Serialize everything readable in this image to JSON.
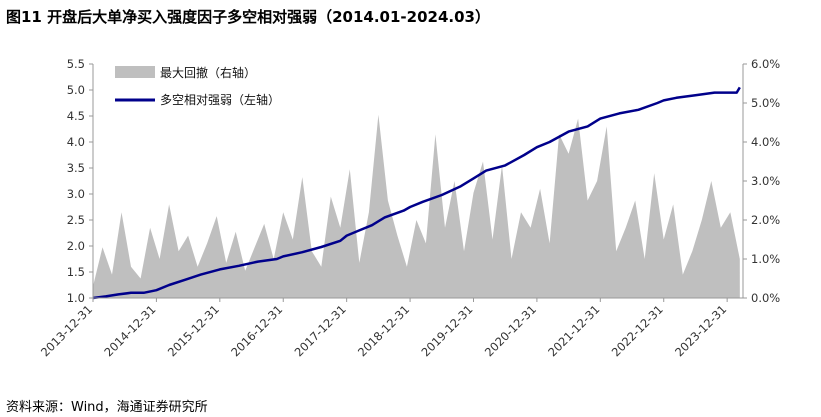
{
  "title": "图11 开盘后大单净买入强度因子多空相对强弱（2014.01-2024.03）",
  "source": "资料来源：Wind，海通证券研究所",
  "chart_data": {
    "type": "line+area",
    "title": "图11 开盘后大单净买入强度因子多空相对强弱（2014.01-2024.03）",
    "x_ticks": [
      "2013-12-31",
      "2014-12-31",
      "2015-12-31",
      "2016-12-31",
      "2017-12-31",
      "2018-12-31",
      "2019-12-31",
      "2020-12-31",
      "2021-12-31",
      "2022-12-31",
      "2023-12-31"
    ],
    "xlim": [
      2014.0,
      2024.25
    ],
    "left_axis": {
      "ylim": [
        1.0,
        5.5
      ],
      "ticks": [
        "1.0",
        "1.5",
        "2.0",
        "2.5",
        "3.0",
        "3.5",
        "4.0",
        "4.5",
        "5.0",
        "5.5"
      ]
    },
    "right_axis": {
      "ylim": [
        0.0,
        0.06
      ],
      "ticks": [
        "0.0%",
        "1.0%",
        "2.0%",
        "3.0%",
        "4.0%",
        "5.0%",
        "6.0%"
      ]
    },
    "legend": [
      "最大回撤（右轴）",
      "多空相对强弱（左轴）"
    ],
    "colors": {
      "line": "#00008B",
      "area": "#BFBFBF"
    },
    "series": [
      {
        "name": "多空相对强弱（左轴）",
        "axis": "left",
        "type": "line",
        "x": [
          2014.0,
          2014.2,
          2014.4,
          2014.6,
          2014.8,
          2015.0,
          2015.2,
          2015.45,
          2015.7,
          2016.0,
          2016.3,
          2016.6,
          2016.9,
          2017.0,
          2017.3,
          2017.6,
          2017.9,
          2018.0,
          2018.2,
          2018.4,
          2018.6,
          2018.9,
          2019.0,
          2019.2,
          2019.5,
          2019.8,
          2020.0,
          2020.2,
          2020.5,
          2020.8,
          2021.0,
          2021.2,
          2021.5,
          2021.8,
          2022.0,
          2022.3,
          2022.6,
          2022.9,
          2023.0,
          2023.2,
          2023.5,
          2023.8,
          2024.0,
          2024.15,
          2024.2
        ],
        "values": [
          1.0,
          1.03,
          1.07,
          1.1,
          1.1,
          1.15,
          1.25,
          1.35,
          1.45,
          1.55,
          1.62,
          1.7,
          1.75,
          1.8,
          1.88,
          1.98,
          2.1,
          2.2,
          2.3,
          2.4,
          2.55,
          2.68,
          2.75,
          2.85,
          2.98,
          3.15,
          3.3,
          3.45,
          3.55,
          3.75,
          3.9,
          4.0,
          4.2,
          4.3,
          4.45,
          4.55,
          4.62,
          4.75,
          4.8,
          4.85,
          4.9,
          4.95,
          4.95,
          4.95,
          5.05
        ]
      },
      {
        "name": "最大回撤（右轴）",
        "axis": "right",
        "type": "area",
        "x": [
          2014.0,
          2014.15,
          2014.3,
          2014.45,
          2014.6,
          2014.75,
          2014.9,
          2015.05,
          2015.2,
          2015.35,
          2015.5,
          2015.65,
          2015.8,
          2015.95,
          2016.1,
          2016.25,
          2016.4,
          2016.55,
          2016.7,
          2016.85,
          2017.0,
          2017.15,
          2017.3,
          2017.45,
          2017.6,
          2017.75,
          2017.9,
          2018.05,
          2018.2,
          2018.35,
          2018.5,
          2018.65,
          2018.8,
          2018.95,
          2019.1,
          2019.25,
          2019.4,
          2019.55,
          2019.7,
          2019.85,
          2020.0,
          2020.15,
          2020.3,
          2020.45,
          2020.6,
          2020.75,
          2020.9,
          2021.05,
          2021.2,
          2021.35,
          2021.5,
          2021.65,
          2021.8,
          2021.95,
          2022.1,
          2022.25,
          2022.4,
          2022.55,
          2022.7,
          2022.85,
          2023.0,
          2023.15,
          2023.3,
          2023.45,
          2023.6,
          2023.75,
          2023.9,
          2024.05,
          2024.2
        ],
        "values": [
          0.003,
          0.013,
          0.006,
          0.022,
          0.008,
          0.005,
          0.018,
          0.01,
          0.024,
          0.012,
          0.016,
          0.008,
          0.014,
          0.021,
          0.009,
          0.017,
          0.007,
          0.013,
          0.019,
          0.01,
          0.022,
          0.015,
          0.031,
          0.012,
          0.008,
          0.026,
          0.018,
          0.033,
          0.009,
          0.022,
          0.047,
          0.025,
          0.016,
          0.008,
          0.02,
          0.014,
          0.042,
          0.018,
          0.03,
          0.012,
          0.027,
          0.035,
          0.015,
          0.034,
          0.01,
          0.022,
          0.018,
          0.028,
          0.014,
          0.042,
          0.037,
          0.046,
          0.025,
          0.03,
          0.044,
          0.012,
          0.018,
          0.025,
          0.01,
          0.032,
          0.015,
          0.024,
          0.006,
          0.012,
          0.02,
          0.03,
          0.018,
          0.022,
          0.01
        ]
      }
    ]
  }
}
